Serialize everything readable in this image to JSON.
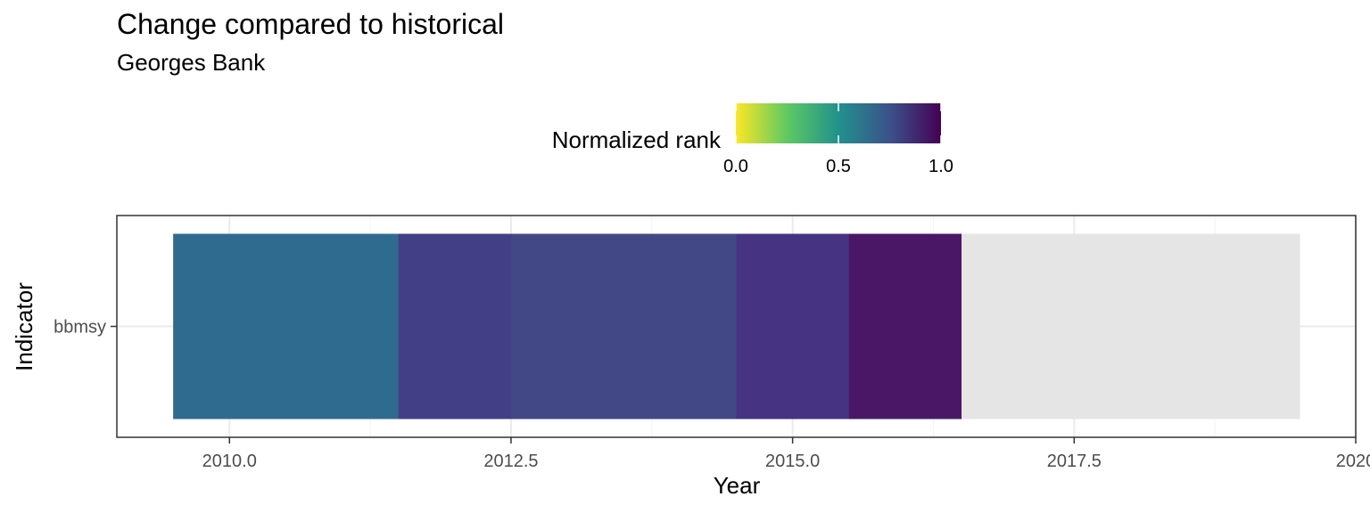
{
  "chart_data": {
    "type": "heatmap",
    "title": "Change compared to historical",
    "subtitle": "Georges Bank",
    "xlabel": "Year",
    "ylabel": "Indicator",
    "xlim": [
      2009,
      2020
    ],
    "x_ticks": [
      "2010.0",
      "2012.5",
      "2015.0",
      "2017.5",
      "2020"
    ],
    "x_tick_values": [
      2010,
      2012.5,
      2015,
      2017.5,
      2020
    ],
    "categories": [
      "bbmsy"
    ],
    "grid": true,
    "legend": {
      "title": "Normalized rank",
      "position": "top",
      "ticks": [
        "0.0",
        "0.5",
        "1.0"
      ],
      "tick_values": [
        0,
        0.5,
        1
      ],
      "colors": [
        "#fde725",
        "#5ec962",
        "#21918c",
        "#3b528b",
        "#440154"
      ]
    },
    "na_color": "#e5e5e5",
    "cells": [
      {
        "indicator": "bbmsy",
        "year": 2010,
        "value": 0.65,
        "color": "#2f6b8e"
      },
      {
        "indicator": "bbmsy",
        "year": 2011,
        "value": 0.65,
        "color": "#2f6b8e"
      },
      {
        "indicator": "bbmsy",
        "year": 2012,
        "value": 0.85,
        "color": "#433f86"
      },
      {
        "indicator": "bbmsy",
        "year": 2013,
        "value": 0.82,
        "color": "#414885"
      },
      {
        "indicator": "bbmsy",
        "year": 2014,
        "value": 0.82,
        "color": "#414885"
      },
      {
        "indicator": "bbmsy",
        "year": 2015,
        "value": 0.9,
        "color": "#463381"
      },
      {
        "indicator": "bbmsy",
        "year": 2016,
        "value": 0.98,
        "color": "#4a1767"
      },
      {
        "indicator": "bbmsy",
        "year": 2017,
        "value": null
      },
      {
        "indicator": "bbmsy",
        "year": 2018,
        "value": null
      },
      {
        "indicator": "bbmsy",
        "year": 2019,
        "value": null
      }
    ]
  }
}
